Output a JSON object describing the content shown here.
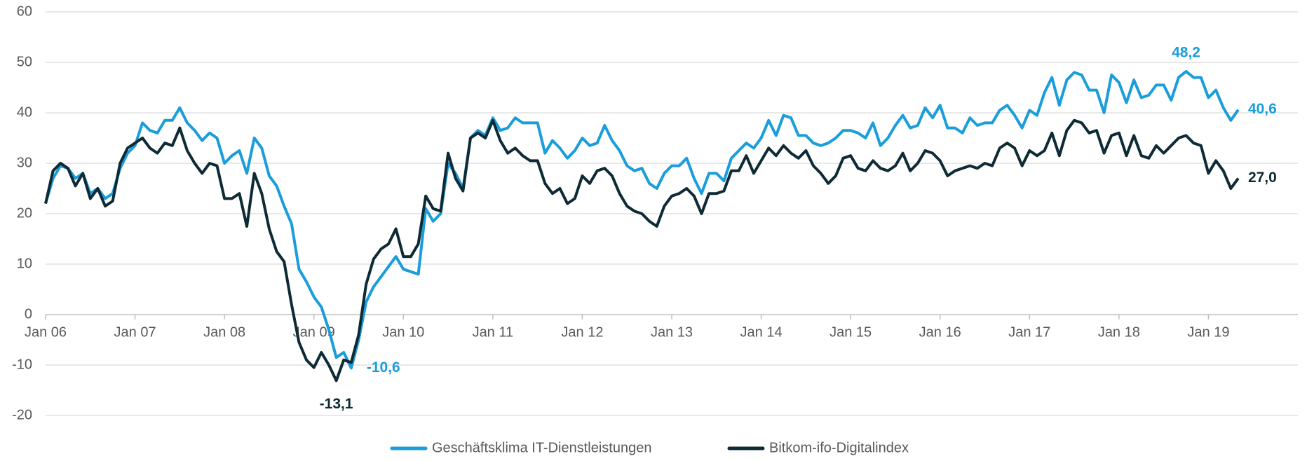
{
  "chart_data": {
    "type": "line",
    "categories": [
      "Jan 06",
      null,
      null,
      null,
      null,
      null,
      null,
      null,
      null,
      null,
      null,
      null,
      "Jan 07",
      null,
      null,
      null,
      null,
      null,
      null,
      null,
      null,
      null,
      null,
      null,
      "Jan 08",
      null,
      null,
      null,
      null,
      null,
      null,
      null,
      null,
      null,
      null,
      null,
      "Jan 09",
      null,
      null,
      null,
      null,
      null,
      null,
      null,
      null,
      null,
      null,
      null,
      "Jan 10",
      null,
      null,
      null,
      null,
      null,
      null,
      null,
      null,
      null,
      null,
      null,
      "Jan 11",
      null,
      null,
      null,
      null,
      null,
      null,
      null,
      null,
      null,
      null,
      null,
      "Jan 12",
      null,
      null,
      null,
      null,
      null,
      null,
      null,
      null,
      null,
      null,
      null,
      "Jan 13",
      null,
      null,
      null,
      null,
      null,
      null,
      null,
      null,
      null,
      null,
      null,
      "Jan 14",
      null,
      null,
      null,
      null,
      null,
      null,
      null,
      null,
      null,
      null,
      null,
      "Jan 15",
      null,
      null,
      null,
      null,
      null,
      null,
      null,
      null,
      null,
      null,
      null,
      "Jan 16",
      null,
      null,
      null,
      null,
      null,
      null,
      null,
      null,
      null,
      null,
      null,
      "Jan 17",
      null,
      null,
      null,
      null,
      null,
      null,
      null,
      null,
      null,
      null,
      null,
      "Jan 18",
      null,
      null,
      null,
      null,
      null,
      null,
      null,
      null,
      null,
      null,
      null,
      "Jan 19",
      null,
      null,
      null,
      null,
      null,
      null,
      null,
      null,
      null,
      null,
      null
    ],
    "series": [
      {
        "name": "Geschäftsklima IT-Dienstleistungen",
        "color": "#1a9ddb",
        "values": [
          22,
          27,
          29.5,
          29,
          27,
          28,
          24,
          25,
          23,
          24,
          29,
          32,
          33.5,
          38,
          36.5,
          36,
          38.5,
          38.5,
          41,
          38,
          36.5,
          34.5,
          36,
          35,
          30,
          31.5,
          32.5,
          28,
          35,
          33,
          27.5,
          25.5,
          21.5,
          18,
          9,
          6.5,
          3.5,
          1.5,
          -3,
          -8.5,
          -7.5,
          -10.6,
          -5,
          2.5,
          5.5,
          7.5,
          9.5,
          11.5,
          9,
          8.5,
          8,
          21,
          18.5,
          20,
          30,
          28,
          25,
          35,
          36.5,
          35.5,
          39,
          36.5,
          37,
          39,
          38,
          38,
          38,
          32,
          34.5,
          33,
          31,
          32.5,
          35,
          33.5,
          34,
          37.5,
          34.5,
          32.5,
          29.5,
          28.5,
          29,
          26,
          25,
          28,
          29.5,
          29.5,
          31,
          27,
          24,
          28,
          28,
          26.5,
          31,
          32.5,
          34,
          33,
          35,
          38.5,
          35.5,
          39.5,
          39,
          35.5,
          35.5,
          34,
          33.5,
          34,
          35,
          36.5,
          36.5,
          36,
          35,
          38,
          33.5,
          35,
          37.5,
          39.5,
          37,
          37.5,
          41,
          39,
          41.5,
          37,
          37,
          36,
          39,
          37.5,
          38,
          38,
          40.5,
          41.5,
          39.5,
          37,
          40.5,
          39.5,
          44,
          47,
          41.5,
          46.5,
          48,
          47.5,
          44.5,
          44.5,
          40,
          47.5,
          46,
          42,
          46.5,
          43,
          43.5,
          45.5,
          45.5,
          42.5,
          47,
          48.2,
          47,
          47,
          43,
          44.5,
          41,
          38.5,
          40.6,
          null,
          null,
          null,
          null,
          null,
          null,
          null
        ],
        "value_labels": [
          null,
          null,
          null,
          null,
          null,
          null,
          null,
          null,
          null,
          null,
          null,
          null,
          null,
          null,
          null,
          null,
          null,
          null,
          null,
          null,
          null,
          null,
          null,
          null,
          null,
          null,
          null,
          null,
          null,
          null,
          null,
          null,
          null,
          null,
          null,
          null,
          null,
          null,
          null,
          null,
          null,
          "-10,6",
          null,
          null,
          null,
          null,
          null,
          null,
          null,
          null,
          null,
          null,
          null,
          null,
          null,
          null,
          null,
          null,
          null,
          null,
          null,
          null,
          null,
          null,
          null,
          null,
          null,
          null,
          null,
          null,
          null,
          null,
          null,
          null,
          null,
          null,
          null,
          null,
          null,
          null,
          null,
          null,
          null,
          null,
          null,
          null,
          null,
          null,
          null,
          null,
          null,
          null,
          null,
          null,
          null,
          null,
          null,
          null,
          null,
          null,
          null,
          null,
          null,
          null,
          null,
          null,
          null,
          null,
          null,
          null,
          null,
          null,
          null,
          null,
          null,
          null,
          null,
          null,
          null,
          null,
          null,
          null,
          null,
          null,
          null,
          null,
          null,
          null,
          null,
          null,
          null,
          null,
          null,
          null,
          null,
          null,
          null,
          null,
          null,
          null,
          null,
          null,
          null,
          null,
          null,
          null,
          null,
          null,
          null,
          null,
          null,
          null,
          null,
          "48,2",
          null,
          null,
          null,
          null,
          null,
          null,
          "40,6",
          null,
          null,
          null,
          null,
          null,
          null,
          null
        ]
      },
      {
        "name": "Bitkom-ifo-Digitalindex",
        "color": "#0d2a35",
        "values": [
          22,
          28.5,
          30,
          29,
          25.5,
          28,
          23,
          25,
          21.5,
          22.5,
          30,
          33,
          34,
          35,
          33,
          32,
          34,
          33.5,
          37,
          32.5,
          30,
          28,
          30,
          29.5,
          23,
          23,
          24,
          17.5,
          28,
          24,
          17,
          12.5,
          10.5,
          2,
          -5.5,
          -9,
          -10.5,
          -7.5,
          -10,
          -13.1,
          -9,
          -9.5,
          -4,
          6,
          11,
          13,
          14,
          17,
          11.5,
          11.5,
          14,
          23.5,
          21,
          20.5,
          32,
          27,
          24.5,
          35,
          36,
          35,
          38.5,
          34.5,
          32,
          33,
          31.5,
          30.5,
          30.5,
          26,
          24,
          25,
          22,
          23,
          27.5,
          26,
          28.5,
          29,
          27.5,
          24,
          21.5,
          20.5,
          20,
          18.5,
          17.5,
          21.5,
          23.5,
          24,
          25,
          23.5,
          20,
          24,
          24,
          24.5,
          28.5,
          28.5,
          31.5,
          28,
          30.5,
          33,
          31.5,
          33.5,
          32,
          31,
          32.5,
          29.5,
          28,
          26,
          27.5,
          31,
          31.5,
          29,
          28.5,
          30.5,
          29,
          28.5,
          29.5,
          32,
          28.5,
          30,
          32.5,
          32,
          30.5,
          27.5,
          28.5,
          29,
          29.5,
          29,
          30,
          29.5,
          33,
          34,
          33,
          29.5,
          32.5,
          31.5,
          32.5,
          36,
          31.5,
          36.5,
          38.5,
          38,
          36,
          36.5,
          32,
          35.5,
          36,
          31.5,
          35.5,
          31.5,
          31,
          33.5,
          32,
          33.5,
          35,
          35.5,
          34,
          33.5,
          28,
          30.5,
          28.5,
          25,
          27.0,
          null,
          null,
          null,
          null,
          null,
          null,
          null
        ],
        "value_labels": [
          null,
          null,
          null,
          null,
          null,
          null,
          null,
          null,
          null,
          null,
          null,
          null,
          null,
          null,
          null,
          null,
          null,
          null,
          null,
          null,
          null,
          null,
          null,
          null,
          null,
          null,
          null,
          null,
          null,
          null,
          null,
          null,
          null,
          null,
          null,
          null,
          null,
          null,
          null,
          "-13,1",
          null,
          null,
          null,
          null,
          null,
          null,
          null,
          null,
          null,
          null,
          null,
          null,
          null,
          null,
          null,
          null,
          null,
          null,
          null,
          null,
          null,
          null,
          null,
          null,
          null,
          null,
          null,
          null,
          null,
          null,
          null,
          null,
          null,
          null,
          null,
          null,
          null,
          null,
          null,
          null,
          null,
          null,
          null,
          null,
          null,
          null,
          null,
          null,
          null,
          null,
          null,
          null,
          null,
          null,
          null,
          null,
          null,
          null,
          null,
          null,
          null,
          null,
          null,
          null,
          null,
          null,
          null,
          null,
          null,
          null,
          null,
          null,
          null,
          null,
          null,
          null,
          null,
          null,
          null,
          null,
          null,
          null,
          null,
          null,
          null,
          null,
          null,
          null,
          null,
          null,
          null,
          null,
          null,
          null,
          null,
          null,
          null,
          null,
          null,
          null,
          null,
          null,
          null,
          null,
          null,
          null,
          null,
          null,
          null,
          null,
          null,
          null,
          null,
          null,
          null,
          null,
          null,
          null,
          null,
          null,
          "27,0",
          null,
          null,
          null,
          null,
          null,
          null,
          null
        ]
      }
    ],
    "ylim": [
      -20,
      60
    ],
    "yticks": [
      -20,
      -10,
      0,
      10,
      20,
      30,
      40,
      50,
      60
    ],
    "grid": true,
    "legend": "bottom"
  }
}
